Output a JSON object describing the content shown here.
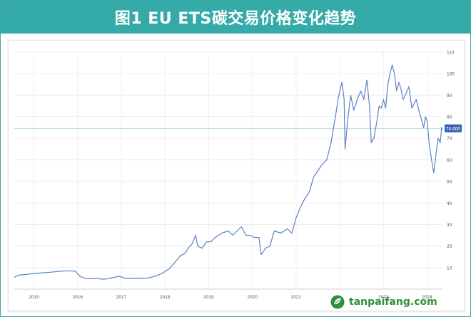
{
  "header": {
    "title": "图1 EU ETS碳交易价格变化趋势"
  },
  "watermark": {
    "text": "tanpaifang.com"
  },
  "colors": {
    "title_bg": "#35aba9",
    "line": "#5a82c6",
    "ref_line": "#8fc6d8",
    "label_bg": "#3a63b4"
  },
  "chart_data": {
    "type": "line",
    "title": "",
    "xlabel": "",
    "ylabel": "",
    "xlim": [
      2014.55,
      2024.35
    ],
    "ylim": [
      0,
      110
    ],
    "y_ticks": [
      10,
      20,
      30,
      40,
      50,
      60,
      70,
      80,
      90,
      100,
      110
    ],
    "x_ticks": [
      2015,
      2016,
      2017,
      2018,
      2019,
      2020,
      2021,
      2022,
      2023,
      2024
    ],
    "x_tick_labels": [
      "2015",
      "2016",
      "2017",
      "2018",
      "2019",
      "2020",
      "2021",
      "",
      "2023",
      "2024"
    ],
    "grid": true,
    "reference_line": {
      "value": 74.6,
      "label": "74.600"
    },
    "series": [
      {
        "values": [
          [
            2014.55,
            5.5
          ],
          [
            2014.65,
            6.5
          ],
          [
            2014.8,
            6.8
          ],
          [
            2015.0,
            7.3
          ],
          [
            2015.2,
            7.6
          ],
          [
            2015.4,
            7.9
          ],
          [
            2015.6,
            8.3
          ],
          [
            2015.8,
            8.5
          ],
          [
            2015.95,
            8.3
          ],
          [
            2016.05,
            6.0
          ],
          [
            2016.2,
            4.8
          ],
          [
            2016.4,
            5.0
          ],
          [
            2016.6,
            4.6
          ],
          [
            2016.8,
            5.3
          ],
          [
            2016.95,
            6.0
          ],
          [
            2017.1,
            5.0
          ],
          [
            2017.3,
            5.0
          ],
          [
            2017.5,
            5.0
          ],
          [
            2017.65,
            5.3
          ],
          [
            2017.8,
            6.2
          ],
          [
            2017.95,
            7.5
          ],
          [
            2018.1,
            9.5
          ],
          [
            2018.25,
            13.0
          ],
          [
            2018.35,
            15.5
          ],
          [
            2018.45,
            16.5
          ],
          [
            2018.55,
            19.5
          ],
          [
            2018.62,
            21.0
          ],
          [
            2018.7,
            25.0
          ],
          [
            2018.75,
            20.0
          ],
          [
            2018.85,
            19.0
          ],
          [
            2018.95,
            22.0
          ],
          [
            2019.05,
            22.0
          ],
          [
            2019.15,
            24.0
          ],
          [
            2019.3,
            26.0
          ],
          [
            2019.45,
            27.0
          ],
          [
            2019.55,
            25.0
          ],
          [
            2019.65,
            27.0
          ],
          [
            2019.75,
            29.0
          ],
          [
            2019.85,
            25.0
          ],
          [
            2019.95,
            25.0
          ],
          [
            2020.05,
            24.0
          ],
          [
            2020.15,
            24.0
          ],
          [
            2020.2,
            16.0
          ],
          [
            2020.3,
            19.0
          ],
          [
            2020.4,
            20.0
          ],
          [
            2020.5,
            27.0
          ],
          [
            2020.65,
            26.0
          ],
          [
            2020.8,
            28.0
          ],
          [
            2020.9,
            26.0
          ],
          [
            2021.0,
            33.0
          ],
          [
            2021.1,
            38.0
          ],
          [
            2021.2,
            42.0
          ],
          [
            2021.3,
            45.0
          ],
          [
            2021.4,
            52.0
          ],
          [
            2021.5,
            55.0
          ],
          [
            2021.6,
            58.0
          ],
          [
            2021.7,
            60.0
          ],
          [
            2021.8,
            68.0
          ],
          [
            2021.9,
            80.0
          ],
          [
            2021.96,
            88.0
          ],
          [
            2022.0,
            92.0
          ],
          [
            2022.05,
            96.0
          ],
          [
            2022.1,
            88.0
          ],
          [
            2022.12,
            65.0
          ],
          [
            2022.18,
            78.0
          ],
          [
            2022.25,
            90.0
          ],
          [
            2022.32,
            83.0
          ],
          [
            2022.4,
            88.0
          ],
          [
            2022.48,
            92.0
          ],
          [
            2022.55,
            88.0
          ],
          [
            2022.62,
            97.0
          ],
          [
            2022.68,
            85.0
          ],
          [
            2022.72,
            68.0
          ],
          [
            2022.78,
            70.0
          ],
          [
            2022.85,
            78.0
          ],
          [
            2022.9,
            85.0
          ],
          [
            2022.95,
            84.0
          ],
          [
            2023.0,
            88.0
          ],
          [
            2023.05,
            84.0
          ],
          [
            2023.1,
            95.0
          ],
          [
            2023.15,
            100.0
          ],
          [
            2023.2,
            104.0
          ],
          [
            2023.25,
            100.0
          ],
          [
            2023.3,
            92.0
          ],
          [
            2023.35,
            96.0
          ],
          [
            2023.4,
            93.0
          ],
          [
            2023.45,
            88.0
          ],
          [
            2023.5,
            90.0
          ],
          [
            2023.58,
            94.0
          ],
          [
            2023.65,
            84.0
          ],
          [
            2023.75,
            88.0
          ],
          [
            2023.82,
            82.0
          ],
          [
            2023.88,
            78.0
          ],
          [
            2023.92,
            75.0
          ],
          [
            2023.96,
            80.0
          ],
          [
            2024.0,
            78.0
          ],
          [
            2024.05,
            67.0
          ],
          [
            2024.1,
            60.0
          ],
          [
            2024.15,
            54.0
          ],
          [
            2024.2,
            62.0
          ],
          [
            2024.25,
            70.0
          ],
          [
            2024.3,
            68.0
          ],
          [
            2024.33,
            75.0
          ],
          [
            2024.35,
            74.0
          ]
        ]
      }
    ]
  }
}
